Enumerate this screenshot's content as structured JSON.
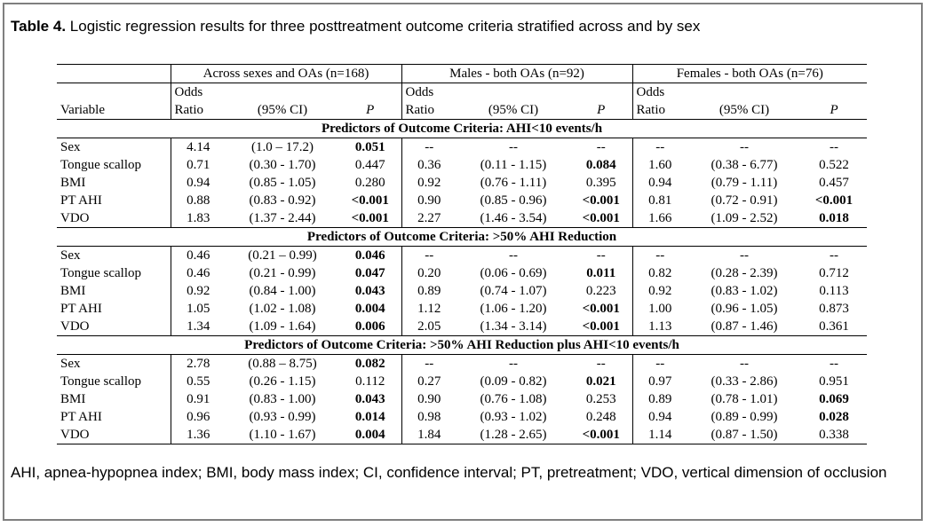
{
  "title": {
    "label": "Table 4.",
    "text": "Logistic regression results for three posttreatment outcome criteria stratified across and by sex"
  },
  "groups": [
    "Across sexes and OAs (n=168)",
    "Males - both OAs (n=92)",
    "Females - both OAs (n=76)"
  ],
  "header": {
    "variable": "Variable",
    "odds_line1": "Odds",
    "odds_line2": "Ratio",
    "ci": "(95% CI)",
    "p": "P"
  },
  "sections": [
    {
      "title": "Predictors of Outcome Criteria:  AHI<10 events/h",
      "rows": [
        {
          "variable": "Sex",
          "cells": [
            {
              "or": "4.14",
              "ci": "(1.0 – 17.2)",
              "p": "0.051",
              "bold": true
            },
            {
              "or": "--",
              "ci": "--",
              "p": "--",
              "bold": false
            },
            {
              "or": "--",
              "ci": "--",
              "p": "--",
              "bold": false
            }
          ]
        },
        {
          "variable": "Tongue scallop",
          "cells": [
            {
              "or": "0.71",
              "ci": "(0.30 - 1.70)",
              "p": "0.447",
              "bold": false
            },
            {
              "or": "0.36",
              "ci": "(0.11 - 1.15)",
              "p": "0.084",
              "bold": true
            },
            {
              "or": "1.60",
              "ci": "(0.38 - 6.77)",
              "p": "0.522",
              "bold": false
            }
          ]
        },
        {
          "variable": "BMI",
          "cells": [
            {
              "or": "0.94",
              "ci": "(0.85 - 1.05)",
              "p": "0.280",
              "bold": false
            },
            {
              "or": "0.92",
              "ci": "(0.76 - 1.11)",
              "p": "0.395",
              "bold": false
            },
            {
              "or": "0.94",
              "ci": "(0.79 - 1.11)",
              "p": "0.457",
              "bold": false
            }
          ]
        },
        {
          "variable": "PT AHI",
          "cells": [
            {
              "or": "0.88",
              "ci": "(0.83 - 0.92)",
              "p": "<0.001",
              "bold": true
            },
            {
              "or": "0.90",
              "ci": "(0.85 - 0.96)",
              "p": "<0.001",
              "bold": true
            },
            {
              "or": "0.81",
              "ci": "(0.72 - 0.91)",
              "p": "<0.001",
              "bold": true
            }
          ]
        },
        {
          "variable": "VDO",
          "cells": [
            {
              "or": "1.83",
              "ci": "(1.37 - 2.44)",
              "p": "<0.001",
              "bold": true
            },
            {
              "or": "2.27",
              "ci": "(1.46 - 3.54)",
              "p": "<0.001",
              "bold": true
            },
            {
              "or": "1.66",
              "ci": "(1.09 - 2.52)",
              "p": "0.018",
              "bold": true
            }
          ]
        }
      ]
    },
    {
      "title": "Predictors of Outcome Criteria:  >50% AHI Reduction",
      "rows": [
        {
          "variable": "Sex",
          "cells": [
            {
              "or": "0.46",
              "ci": "(0.21 – 0.99)",
              "p": "0.046",
              "bold": true
            },
            {
              "or": "--",
              "ci": "--",
              "p": "--",
              "bold": false
            },
            {
              "or": "--",
              "ci": "--",
              "p": "--",
              "bold": false
            }
          ]
        },
        {
          "variable": "Tongue scallop",
          "cells": [
            {
              "or": "0.46",
              "ci": "(0.21 - 0.99)",
              "p": "0.047",
              "bold": true
            },
            {
              "or": "0.20",
              "ci": "(0.06 - 0.69)",
              "p": "0.011",
              "bold": true
            },
            {
              "or": "0.82",
              "ci": "(0.28 - 2.39)",
              "p": "0.712",
              "bold": false
            }
          ]
        },
        {
          "variable": "BMI",
          "cells": [
            {
              "or": "0.92",
              "ci": "(0.84 - 1.00)",
              "p": "0.043",
              "bold": true
            },
            {
              "or": "0.89",
              "ci": "(0.74 - 1.07)",
              "p": "0.223",
              "bold": false
            },
            {
              "or": "0.92",
              "ci": "(0.83 - 1.02)",
              "p": "0.113",
              "bold": false
            }
          ]
        },
        {
          "variable": "PT AHI",
          "cells": [
            {
              "or": "1.05",
              "ci": "(1.02 - 1.08)",
              "p": "0.004",
              "bold": true
            },
            {
              "or": "1.12",
              "ci": "(1.06 - 1.20)",
              "p": "<0.001",
              "bold": true
            },
            {
              "or": "1.00",
              "ci": "(0.96 - 1.05)",
              "p": "0.873",
              "bold": false
            }
          ]
        },
        {
          "variable": "VDO",
          "cells": [
            {
              "or": "1.34",
              "ci": "(1.09 - 1.64)",
              "p": "0.006",
              "bold": true
            },
            {
              "or": "2.05",
              "ci": "(1.34 - 3.14)",
              "p": "<0.001",
              "bold": true
            },
            {
              "or": "1.13",
              "ci": "(0.87 - 1.46)",
              "p": "0.361",
              "bold": false
            }
          ]
        }
      ]
    },
    {
      "title": "Predictors of Outcome Criteria:  >50% AHI Reduction plus AHI<10 events/h",
      "rows": [
        {
          "variable": "Sex",
          "cells": [
            {
              "or": "2.78",
              "ci": "(0.88 – 8.75)",
              "p": "0.082",
              "bold": true
            },
            {
              "or": "--",
              "ci": "--",
              "p": "--",
              "bold": false
            },
            {
              "or": "--",
              "ci": "--",
              "p": "--",
              "bold": false
            }
          ]
        },
        {
          "variable": "Tongue scallop",
          "cells": [
            {
              "or": "0.55",
              "ci": "(0.26 - 1.15)",
              "p": "0.112",
              "bold": false
            },
            {
              "or": "0.27",
              "ci": "(0.09 - 0.82)",
              "p": "0.021",
              "bold": true
            },
            {
              "or": "0.97",
              "ci": "(0.33 - 2.86)",
              "p": "0.951",
              "bold": false
            }
          ]
        },
        {
          "variable": "BMI",
          "cells": [
            {
              "or": "0.91",
              "ci": "(0.83 - 1.00)",
              "p": "0.043",
              "bold": true
            },
            {
              "or": "0.90",
              "ci": "(0.76 - 1.08)",
              "p": "0.253",
              "bold": false
            },
            {
              "or": "0.89",
              "ci": "(0.78 - 1.01)",
              "p": "0.069",
              "bold": true
            }
          ]
        },
        {
          "variable": "PT AHI",
          "cells": [
            {
              "or": "0.96",
              "ci": "(0.93 - 0.99)",
              "p": "0.014",
              "bold": true
            },
            {
              "or": "0.98",
              "ci": "(0.93 - 1.02)",
              "p": "0.248",
              "bold": false
            },
            {
              "or": "0.94",
              "ci": "(0.89 - 0.99)",
              "p": "0.028",
              "bold": true
            }
          ]
        },
        {
          "variable": "VDO",
          "cells": [
            {
              "or": "1.36",
              "ci": "(1.10 - 1.67)",
              "p": "0.004",
              "bold": true
            },
            {
              "or": "1.84",
              "ci": "(1.28 - 2.65)",
              "p": "<0.001",
              "bold": true
            },
            {
              "or": "1.14",
              "ci": "(0.87 - 1.50)",
              "p": "0.338",
              "bold": false
            }
          ]
        }
      ]
    }
  ],
  "footnote": "AHI, apnea-hypopnea index; BMI, body mass index; CI, confidence interval; PT, pretreatment; VDO, vertical dimension of occlusion"
}
